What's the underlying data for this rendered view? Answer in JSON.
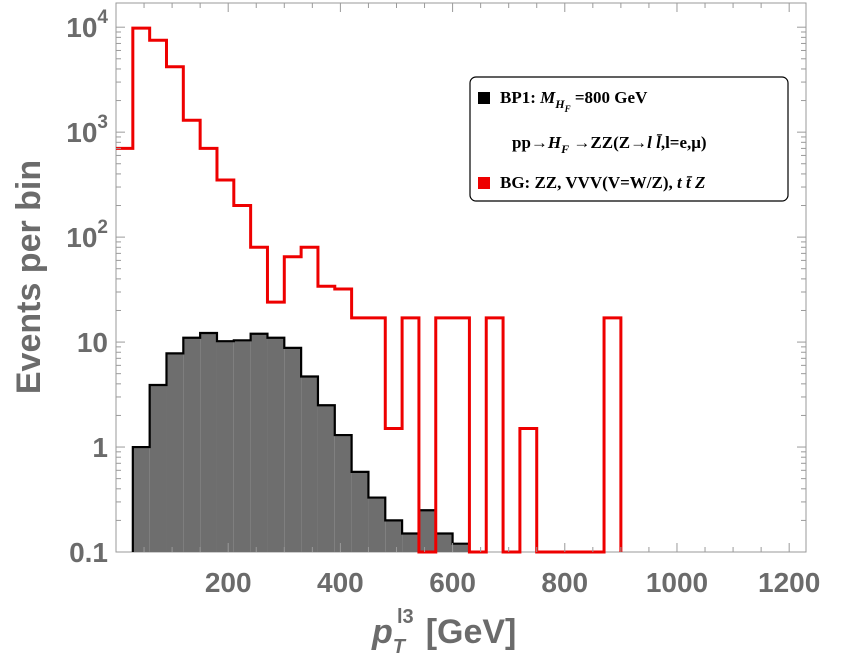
{
  "chart_data": {
    "type": "histogram",
    "xlabel": {
      "symbol": "p",
      "sup": "l3",
      "sub": "T",
      "unit": "[GeV]"
    },
    "ylabel": "Events per bin",
    "xlim": [
      0,
      1230
    ],
    "ylim": [
      0.1,
      17000
    ],
    "yscale": "log",
    "x_ticks": [
      200,
      400,
      600,
      800,
      1000,
      1200
    ],
    "x_tick_labels": [
      "200",
      "400",
      "600",
      "800",
      "1000",
      "1200"
    ],
    "y_ticks": [
      {
        "value": 0.1,
        "label": "0.1"
      },
      {
        "value": 1,
        "label": "1"
      },
      {
        "value": 10,
        "label": "10"
      },
      {
        "value": 100,
        "label": "10",
        "exp": "2"
      },
      {
        "value": 1000,
        "label": "10",
        "exp": "3"
      },
      {
        "value": 10000,
        "label": "10",
        "exp": "4"
      }
    ],
    "bin_width": 30,
    "series": [
      {
        "name": "BP1",
        "style": "filled",
        "fill": "#6e6e6e",
        "edge": "#000000",
        "bins_start": 30,
        "values": [
          1.0,
          3.9,
          7.8,
          11.0,
          12.2,
          10.2,
          10.4,
          12.0,
          11.0,
          8.8,
          4.7,
          2.5,
          1.3,
          0.58,
          0.33,
          0.2,
          0.15,
          0.25,
          0.15,
          0.12
        ]
      },
      {
        "name": "BG",
        "style": "step",
        "fill": "none",
        "edge": "#ee0000",
        "bins_start": 0,
        "values": [
          700,
          9800,
          7500,
          4200,
          1300,
          700,
          350,
          200,
          80,
          24,
          65,
          80,
          34,
          32,
          17,
          17,
          1.5,
          17,
          0.1,
          17,
          17,
          0.1,
          17,
          0.1,
          1.5,
          0.1,
          0.1,
          0.1,
          0.1,
          17
        ]
      }
    ],
    "legend": {
      "position": "top-right",
      "entries": [
        {
          "swatch": "#000000",
          "label": "BP1: ",
          "math": "M",
          "math_sub": "H",
          "math_subsub": "F",
          "tail": " =800 GeV"
        },
        {
          "swatch": null,
          "label": "pp→",
          "math": "H",
          "math_sub": "F",
          "tail": " →ZZ(Z→",
          "ll": "l l̄",
          "tail2": ",l=e,μ)"
        },
        {
          "swatch": "#ee0000",
          "label": "BG: ZZ, VVV(V=W/Z), ",
          "ttz": "t t̄ Z"
        }
      ]
    }
  }
}
